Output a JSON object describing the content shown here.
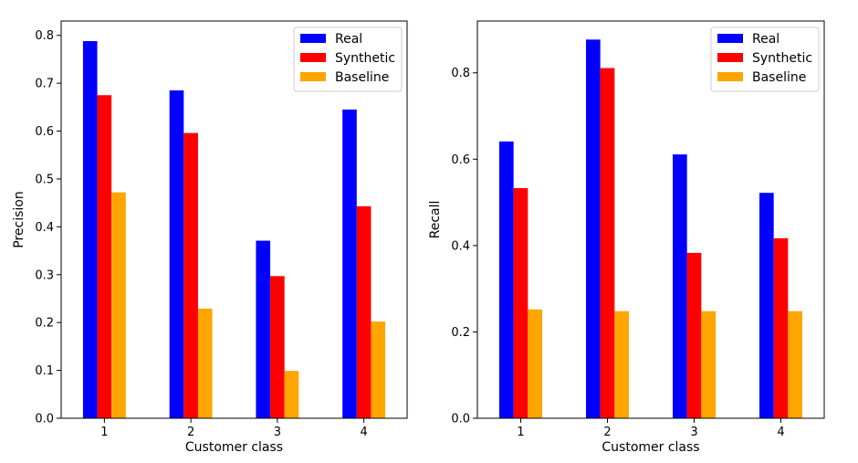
{
  "chart_data": [
    {
      "type": "bar",
      "xlabel": "Customer class",
      "ylabel": "Precision",
      "categories": [
        "1",
        "2",
        "3",
        "4"
      ],
      "ylim": [
        0,
        0.83
      ],
      "yticks": [
        "0.0",
        "0.1",
        "0.2",
        "0.3",
        "0.4",
        "0.5",
        "0.6",
        "0.7",
        "0.8"
      ],
      "legend_position": "top-right",
      "series": [
        {
          "name": "Real",
          "color": "#0000ff",
          "values": [
            0.788,
            0.685,
            0.371,
            0.645
          ]
        },
        {
          "name": "Synthetic",
          "color": "#ff0000",
          "values": [
            0.675,
            0.596,
            0.297,
            0.443
          ]
        },
        {
          "name": "Baseline",
          "color": "#ffa500",
          "values": [
            0.472,
            0.229,
            0.099,
            0.202
          ]
        }
      ]
    },
    {
      "type": "bar",
      "xlabel": "Customer class",
      "ylabel": "Recall",
      "categories": [
        "1",
        "2",
        "3",
        "4"
      ],
      "ylim": [
        0,
        0.92
      ],
      "yticks": [
        "0.0",
        "0.2",
        "0.4",
        "0.6",
        "0.8"
      ],
      "legend_position": "top-right",
      "series": [
        {
          "name": "Real",
          "color": "#0000ff",
          "values": [
            0.641,
            0.877,
            0.611,
            0.522
          ]
        },
        {
          "name": "Synthetic",
          "color": "#ff0000",
          "values": [
            0.533,
            0.811,
            0.383,
            0.417
          ]
        },
        {
          "name": "Baseline",
          "color": "#ffa500",
          "values": [
            0.252,
            0.248,
            0.248,
            0.248
          ]
        }
      ]
    }
  ]
}
